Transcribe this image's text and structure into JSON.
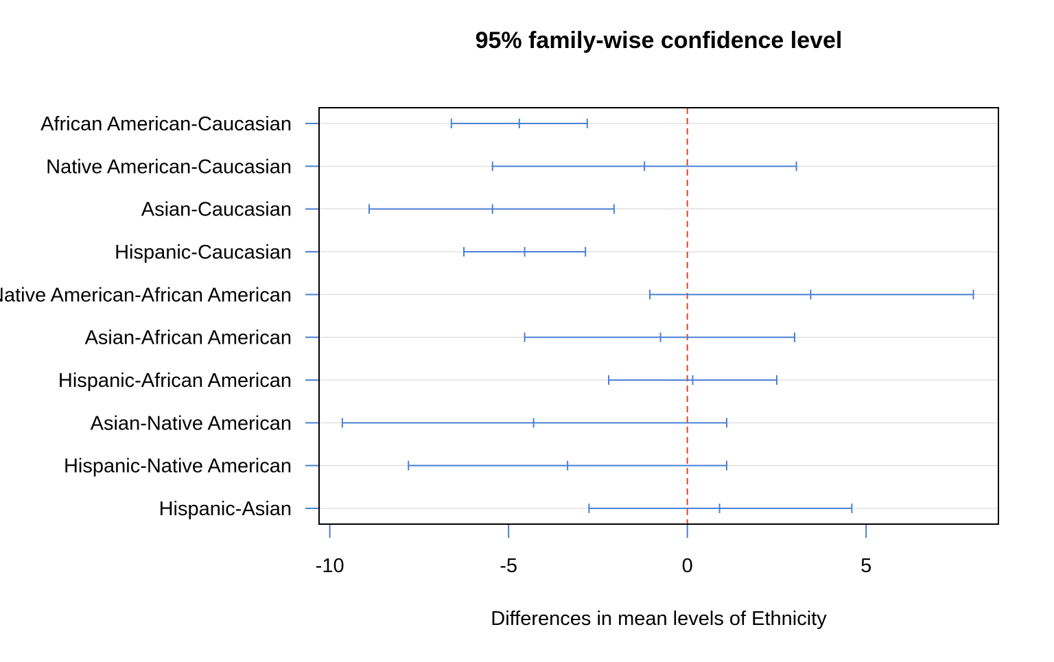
{
  "chart_data": {
    "type": "errorbar",
    "title": "95% family-wise confidence level",
    "xlabel": "Differences in mean levels of Ethnicity",
    "ylabel": "",
    "xlim": [
      -10.3,
      8.7
    ],
    "xticks": [
      -10,
      -5,
      0,
      5
    ],
    "xtick_labels": [
      "-10",
      "-5",
      "0",
      "5"
    ],
    "grid": "horizontal",
    "reference_line": 0,
    "colors": {
      "interval": "#4a7fd4",
      "reference": "#e8441a",
      "grid": "#d3d3d3",
      "frame": "#000000"
    },
    "comparisons": [
      {
        "label": "African American-Caucasian",
        "lwr": -6.6,
        "diff": -4.7,
        "upr": -2.8
      },
      {
        "label": "Native American-Caucasian",
        "lwr": -5.45,
        "diff": -1.2,
        "upr": 3.05
      },
      {
        "label": "Asian-Caucasian",
        "lwr": -8.9,
        "diff": -5.45,
        "upr": -2.05
      },
      {
        "label": "Hispanic-Caucasian",
        "lwr": -6.25,
        "diff": -4.55,
        "upr": -2.85
      },
      {
        "label": "Native American-African American",
        "lwr": -1.05,
        "diff": 3.45,
        "upr": 8.0
      },
      {
        "label": "Asian-African American",
        "lwr": -4.55,
        "diff": -0.75,
        "upr": 3.0
      },
      {
        "label": "Hispanic-African American",
        "lwr": -2.2,
        "diff": 0.15,
        "upr": 2.5
      },
      {
        "label": "Asian-Native American",
        "lwr": -9.65,
        "diff": -4.3,
        "upr": 1.1
      },
      {
        "label": "Hispanic-Native American",
        "lwr": -7.8,
        "diff": -3.35,
        "upr": 1.1
      },
      {
        "label": "Hispanic-Asian",
        "lwr": -2.75,
        "diff": 0.9,
        "upr": 4.6
      }
    ]
  }
}
